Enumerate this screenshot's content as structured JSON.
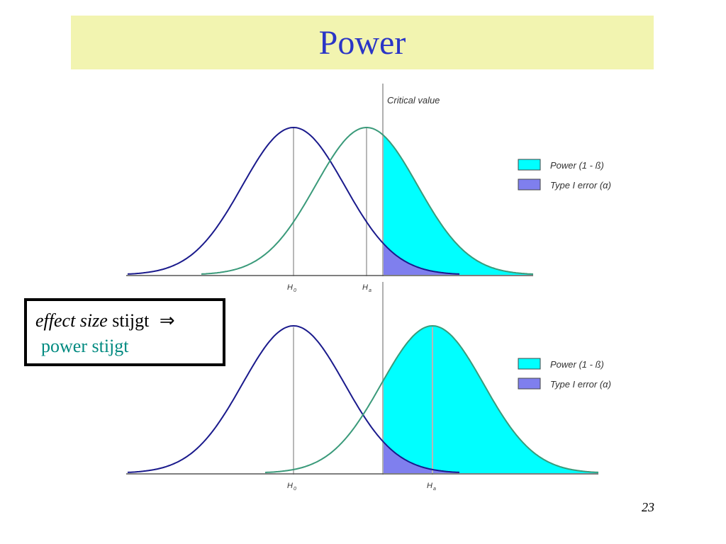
{
  "slide": {
    "title": "Power",
    "page_number": "23"
  },
  "callout": {
    "term": "effect size",
    "verb": "stijgt",
    "arrow": "⇒",
    "result": "power stijgt"
  },
  "diagram": {
    "critical_value_label": "Critical value",
    "legend": {
      "power": "Power (1 - ß)",
      "type1": "Type I error (α)"
    },
    "h0_label": "H",
    "h0_sub": "0",
    "ha_label": "H",
    "ha_sub": "a"
  },
  "colors": {
    "title_bg": "#f2f4b0",
    "title_text": "#2a35c6",
    "h0_curve": "#1a1a8c",
    "ha_curve": "#3a9a7a",
    "power_fill": "#00ffff",
    "type1_fill": "#7f7fee",
    "callout_result": "#008a80"
  }
}
